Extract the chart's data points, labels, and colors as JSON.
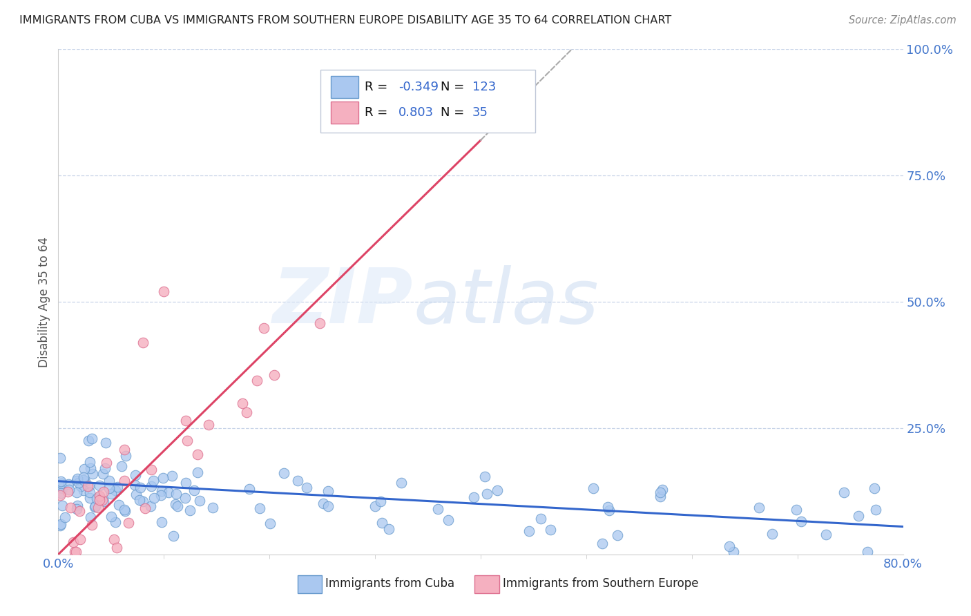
{
  "title": "IMMIGRANTS FROM CUBA VS IMMIGRANTS FROM SOUTHERN EUROPE DISABILITY AGE 35 TO 64 CORRELATION CHART",
  "source": "Source: ZipAtlas.com",
  "ylabel_label": "Disability Age 35 to 64",
  "watermark_zip": "ZIP",
  "watermark_atlas": "atlas",
  "legend_cuba_R": "-0.349",
  "legend_cuba_N": "123",
  "legend_se_R": "0.803",
  "legend_se_N": "35",
  "cuba_color": "#aac8f0",
  "cuba_edge": "#6699cc",
  "se_color": "#f5b0c0",
  "se_edge": "#dd7090",
  "trendline_cuba_color": "#3366cc",
  "trendline_se_color": "#dd4466",
  "background_color": "#ffffff",
  "grid_color": "#c8d4e8",
  "title_color": "#222222",
  "axis_color": "#4477cc",
  "xlim": [
    0.0,
    0.8
  ],
  "ylim": [
    0.0,
    1.0
  ],
  "legend_text_color": "#3366cc",
  "legend_label_color": "#111111"
}
